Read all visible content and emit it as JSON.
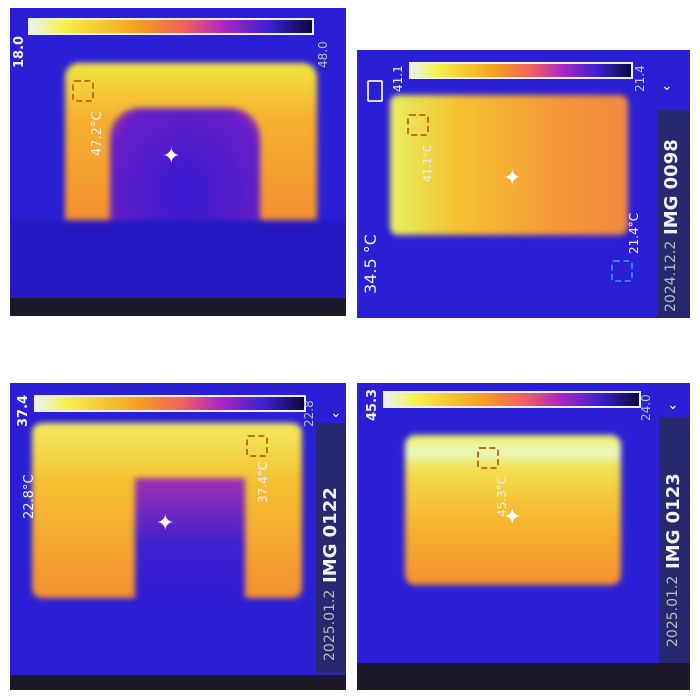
{
  "panels": [
    {
      "scale_max": "18.0",
      "scale_min": "48.0",
      "spot_temp": "47.2°C"
    },
    {
      "scale_max": "41.1",
      "scale_min": "21.4",
      "spot_temp": "41.1°C",
      "min_temp": "21.4°C",
      "center_temp": "34.5 °C",
      "date": "2024.12.2",
      "image_name": "IMG 0098",
      "icons": [
        "battery-icon",
        "chevron-down-icon"
      ]
    },
    {
      "scale_max": "37.4",
      "scale_min": "22.8",
      "spot_temp": "37.4°C",
      "center_temp": "22.8°C",
      "date": "2025.01.2",
      "image_name": "IMG 0122",
      "icons": [
        "chevron-down-icon"
      ]
    },
    {
      "scale_max": "45.3",
      "scale_min": "24.0",
      "spot_temp": "45.3°C",
      "date": "2025.01.2",
      "image_name": "IMG 0123",
      "icons": [
        "chevron-down-icon"
      ]
    }
  ],
  "colors": {
    "background_cold": "#2b1fd6",
    "hot_yellow": "#f6f04a",
    "warm_orange": "#f5a020"
  }
}
